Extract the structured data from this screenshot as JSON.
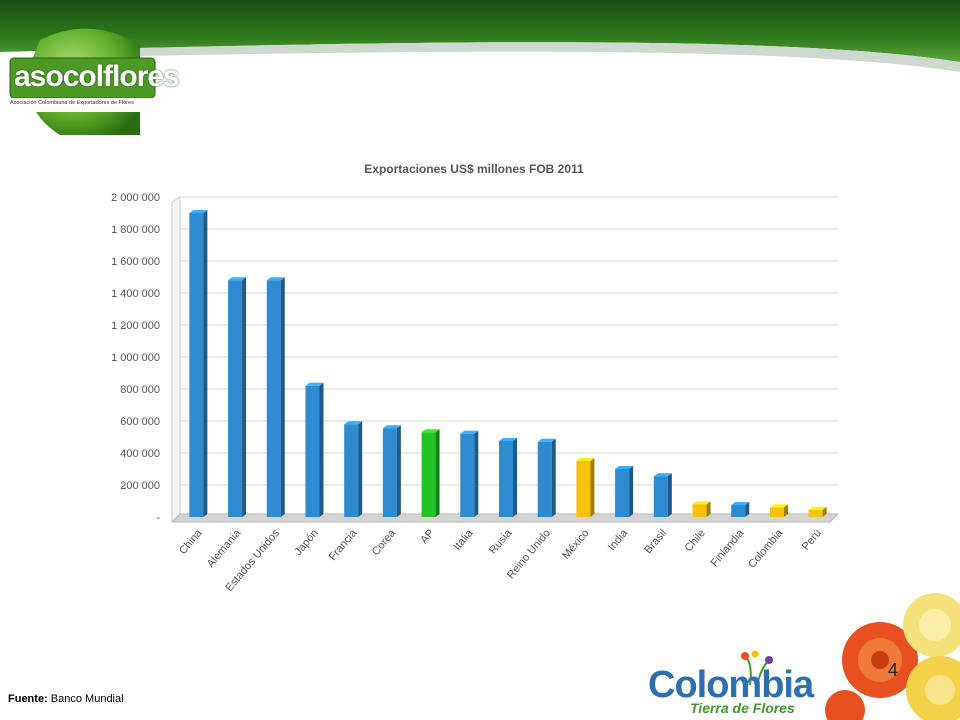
{
  "header": {
    "logo_text": "asocolflores",
    "logo_subtitle": "Asociación Colombiana de Exportadores de Flores"
  },
  "footer": {
    "source_label": "Fuente:",
    "source_value": "Banco Mundial",
    "page_number": "4",
    "brand_word": "Colombia",
    "brand_tagline": "Tierra de Flores"
  },
  "chart_data": {
    "type": "bar",
    "title": "Exportaciones US$ millones FOB 2011",
    "categories": [
      "China",
      "Alemania",
      "Estados Unidos",
      "Japón",
      "Francia",
      "Corea",
      "AP",
      "Italia",
      "Rusia",
      "Reino Unido",
      "México",
      "India",
      "Brasil",
      "Chile",
      "Finlandia",
      "Colombia",
      "Perú"
    ],
    "values": [
      1900000,
      1480000,
      1480000,
      820000,
      580000,
      555000,
      530000,
      520000,
      475000,
      470000,
      350000,
      300000,
      255000,
      80000,
      75000,
      60000,
      45000
    ],
    "colors": [
      "#2f8bd0",
      "#2f8bd0",
      "#2f8bd0",
      "#2f8bd0",
      "#2f8bd0",
      "#2f8bd0",
      "#22c322",
      "#2f8bd0",
      "#2f8bd0",
      "#2f8bd0",
      "#f5c20a",
      "#2f8bd0",
      "#2f8bd0",
      "#f5c20a",
      "#2f8bd0",
      "#f5c20a",
      "#f5c20a"
    ],
    "ylim": [
      0,
      2000000
    ],
    "yticks": [
      "-",
      "200 000",
      "400 000",
      "600 000",
      "800 000",
      "1 000 000",
      "1 200 000",
      "1 400 000",
      "1 600 000",
      "1 800 000",
      "2 000 000"
    ],
    "grid": true,
    "xlabel": "",
    "ylabel": ""
  }
}
